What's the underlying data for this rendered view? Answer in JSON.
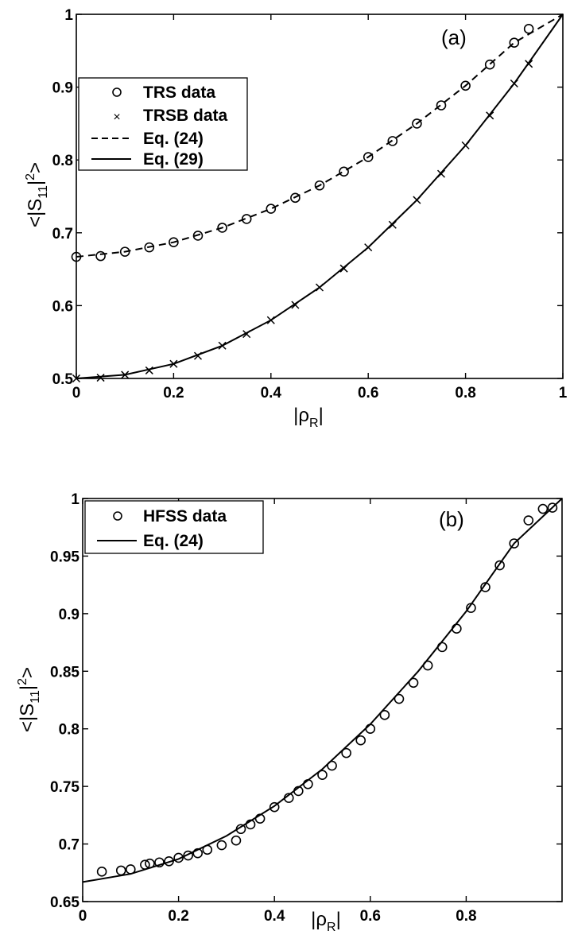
{
  "chart_data": [
    {
      "type": "scatter",
      "panel_label": "(a)",
      "xlabel": "|ρR|",
      "ylabel": "<|S11|2>",
      "xlim": [
        0,
        1
      ],
      "ylim": [
        0.5,
        1
      ],
      "xticks": [
        "0",
        "0.2",
        "0.4",
        "0.6",
        "0.8",
        "1"
      ],
      "yticks": [
        "0.5",
        "0.6",
        "0.7",
        "0.8",
        "0.9",
        "1"
      ],
      "grid": false,
      "legend_position": "upper-left",
      "legend": [
        {
          "label": "TRS data",
          "marker": "circle"
        },
        {
          "label": "TRSB data",
          "marker": "x"
        },
        {
          "label": "Eq. (24)",
          "style": "dashed"
        },
        {
          "label": "Eq. (29)",
          "style": "solid"
        }
      ],
      "series": [
        {
          "name": "TRS data",
          "marker": "circle",
          "x": [
            0,
            0.05,
            0.1,
            0.15,
            0.2,
            0.25,
            0.3,
            0.35,
            0.4,
            0.45,
            0.5,
            0.55,
            0.6,
            0.65,
            0.7,
            0.75,
            0.8,
            0.85,
            0.9,
            0.93
          ],
          "y": [
            0.667,
            0.668,
            0.674,
            0.68,
            0.687,
            0.696,
            0.707,
            0.719,
            0.733,
            0.748,
            0.765,
            0.784,
            0.804,
            0.826,
            0.85,
            0.875,
            0.902,
            0.931,
            0.961,
            0.98
          ]
        },
        {
          "name": "TRSB data",
          "marker": "x",
          "x": [
            0,
            0.05,
            0.1,
            0.15,
            0.2,
            0.25,
            0.3,
            0.35,
            0.4,
            0.45,
            0.5,
            0.55,
            0.6,
            0.65,
            0.7,
            0.75,
            0.8,
            0.85,
            0.9,
            0.93
          ],
          "y": [
            0.5,
            0.501,
            0.505,
            0.511,
            0.52,
            0.531,
            0.545,
            0.561,
            0.58,
            0.601,
            0.625,
            0.651,
            0.68,
            0.711,
            0.745,
            0.781,
            0.82,
            0.861,
            0.905,
            0.932
          ]
        },
        {
          "name": "Eq. (24)",
          "line": "dashed",
          "x": [
            0,
            0.1,
            0.2,
            0.3,
            0.4,
            0.5,
            0.6,
            0.7,
            0.8,
            0.9,
            1.0
          ],
          "y": [
            0.667,
            0.674,
            0.687,
            0.707,
            0.733,
            0.765,
            0.804,
            0.85,
            0.902,
            0.961,
            1.0
          ]
        },
        {
          "name": "Eq. (29)",
          "line": "solid",
          "x": [
            0,
            0.1,
            0.2,
            0.3,
            0.4,
            0.5,
            0.6,
            0.7,
            0.8,
            0.9,
            1.0
          ],
          "y": [
            0.5,
            0.505,
            0.52,
            0.545,
            0.58,
            0.625,
            0.68,
            0.745,
            0.82,
            0.905,
            1.0
          ]
        }
      ]
    },
    {
      "type": "scatter",
      "panel_label": "(b)",
      "xlabel": "|ρR|",
      "ylabel": "<|S11|2>",
      "xlim": [
        0,
        1
      ],
      "ylim": [
        0.65,
        1
      ],
      "xticks": [
        "0",
        "0.2",
        "0.4",
        "0.6",
        "0.8"
      ],
      "yticks": [
        "0.65",
        "0.7",
        "0.75",
        "0.8",
        "0.85",
        "0.9",
        "0.95",
        "1"
      ],
      "grid": false,
      "legend_position": "upper-left",
      "legend": [
        {
          "label": "HFSS data",
          "marker": "circle"
        },
        {
          "label": "Eq. (24)",
          "style": "solid"
        }
      ],
      "series": [
        {
          "name": "HFSS data",
          "marker": "circle",
          "x": [
            0.04,
            0.08,
            0.1,
            0.13,
            0.14,
            0.16,
            0.18,
            0.2,
            0.22,
            0.24,
            0.26,
            0.29,
            0.32,
            0.33,
            0.35,
            0.37,
            0.4,
            0.43,
            0.45,
            0.47,
            0.5,
            0.52,
            0.55,
            0.58,
            0.6,
            0.63,
            0.66,
            0.69,
            0.72,
            0.75,
            0.78,
            0.81,
            0.84,
            0.87,
            0.9,
            0.93,
            0.96,
            0.98
          ],
          "y": [
            0.676,
            0.677,
            0.678,
            0.682,
            0.683,
            0.684,
            0.685,
            0.688,
            0.69,
            0.692,
            0.695,
            0.699,
            0.703,
            0.713,
            0.717,
            0.722,
            0.732,
            0.74,
            0.746,
            0.752,
            0.76,
            0.768,
            0.779,
            0.79,
            0.8,
            0.812,
            0.826,
            0.84,
            0.855,
            0.871,
            0.887,
            0.905,
            0.923,
            0.942,
            0.961,
            0.981,
            0.991,
            0.992
          ]
        },
        {
          "name": "Eq. (24)",
          "line": "solid",
          "x": [
            0,
            0.1,
            0.2,
            0.3,
            0.4,
            0.5,
            0.6,
            0.7,
            0.8,
            0.9,
            1.0
          ],
          "y": [
            0.667,
            0.674,
            0.687,
            0.707,
            0.733,
            0.765,
            0.804,
            0.85,
            0.902,
            0.961,
            1.0
          ]
        }
      ]
    }
  ]
}
